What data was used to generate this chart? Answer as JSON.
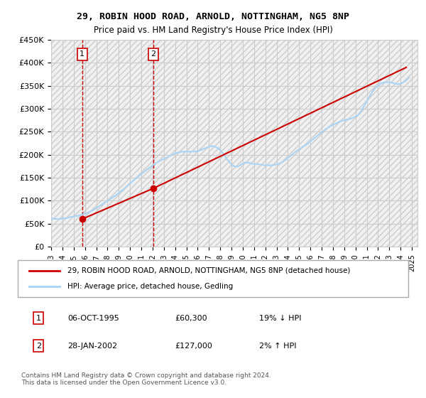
{
  "title": "29, ROBIN HOOD ROAD, ARNOLD, NOTTINGHAM, NG5 8NP",
  "subtitle": "Price paid vs. HM Land Registry's House Price Index (HPI)",
  "ylabel": "",
  "ylim": [
    0,
    450000
  ],
  "yticks": [
    0,
    50000,
    100000,
    150000,
    200000,
    250000,
    300000,
    350000,
    400000,
    450000
  ],
  "ytick_labels": [
    "£0",
    "£50K",
    "£100K",
    "£150K",
    "£200K",
    "£250K",
    "£300K",
    "£350K",
    "£400K",
    "£450K"
  ],
  "xlim_start": 1993.0,
  "xlim_end": 2025.5,
  "xticks": [
    1993,
    1994,
    1995,
    1996,
    1997,
    1998,
    1999,
    2000,
    2001,
    2002,
    2003,
    2004,
    2005,
    2006,
    2007,
    2008,
    2009,
    2010,
    2011,
    2012,
    2013,
    2014,
    2015,
    2016,
    2017,
    2018,
    2019,
    2020,
    2021,
    2022,
    2023,
    2024,
    2025
  ],
  "background_color": "#ffffff",
  "plot_bg_color": "#ffffff",
  "grid_color": "#cccccc",
  "hpi_line_color": "#aad4f5",
  "price_line_color": "#cc0000",
  "sale1_x": 1995.76,
  "sale1_y": 60300,
  "sale1_label": "1",
  "sale1_vline_color": "#cc0000",
  "sale2_x": 2002.07,
  "sale2_y": 127000,
  "sale2_label": "2",
  "sale2_vline_color": "#cc0000",
  "legend_label1": "29, ROBIN HOOD ROAD, ARNOLD, NOTTINGHAM, NG5 8NP (detached house)",
  "legend_label2": "HPI: Average price, detached house, Gedling",
  "table_row1": [
    "1",
    "06-OCT-1995",
    "£60,300",
    "19% ↓ HPI"
  ],
  "table_row2": [
    "2",
    "28-JAN-2002",
    "£127,000",
    "2% ↑ HPI"
  ],
  "footnote": "Contains HM Land Registry data © Crown copyright and database right 2024.\nThis data is licensed under the Open Government Licence v3.0.",
  "hpi_data_x": [
    1993.0,
    1993.25,
    1993.5,
    1993.75,
    1994.0,
    1994.25,
    1994.5,
    1994.75,
    1995.0,
    1995.25,
    1995.5,
    1995.75,
    1996.0,
    1996.25,
    1996.5,
    1996.75,
    1997.0,
    1997.25,
    1997.5,
    1997.75,
    1998.0,
    1998.25,
    1998.5,
    1998.75,
    1999.0,
    1999.25,
    1999.5,
    1999.75,
    2000.0,
    2000.25,
    2000.5,
    2000.75,
    2001.0,
    2001.25,
    2001.5,
    2001.75,
    2002.0,
    2002.25,
    2002.5,
    2002.75,
    2003.0,
    2003.25,
    2003.5,
    2003.75,
    2004.0,
    2004.25,
    2004.5,
    2004.75,
    2005.0,
    2005.25,
    2005.5,
    2005.75,
    2006.0,
    2006.25,
    2006.5,
    2006.75,
    2007.0,
    2007.25,
    2007.5,
    2007.75,
    2008.0,
    2008.25,
    2008.5,
    2008.75,
    2009.0,
    2009.25,
    2009.5,
    2009.75,
    2010.0,
    2010.25,
    2010.5,
    2010.75,
    2011.0,
    2011.25,
    2011.5,
    2011.75,
    2012.0,
    2012.25,
    2012.5,
    2012.75,
    2013.0,
    2013.25,
    2013.5,
    2013.75,
    2014.0,
    2014.25,
    2014.5,
    2014.75,
    2015.0,
    2015.25,
    2015.5,
    2015.75,
    2016.0,
    2016.25,
    2016.5,
    2016.75,
    2017.0,
    2017.25,
    2017.5,
    2017.75,
    2018.0,
    2018.25,
    2018.5,
    2018.75,
    2019.0,
    2019.25,
    2019.5,
    2019.75,
    2020.0,
    2020.25,
    2020.5,
    2020.75,
    2021.0,
    2021.25,
    2021.5,
    2021.75,
    2022.0,
    2022.25,
    2022.5,
    2022.75,
    2023.0,
    2023.25,
    2023.5,
    2023.75,
    2024.0,
    2024.25,
    2024.5,
    2024.75
  ],
  "hpi_data_y": [
    62000,
    61000,
    60500,
    60000,
    61000,
    62000,
    63000,
    65000,
    66000,
    67000,
    68000,
    70000,
    72000,
    74000,
    77000,
    80000,
    84000,
    88000,
    92000,
    96000,
    100000,
    104000,
    108000,
    112000,
    117000,
    122000,
    127000,
    132000,
    138000,
    143000,
    148000,
    153000,
    158000,
    163000,
    168000,
    172000,
    177000,
    181000,
    185000,
    188000,
    191000,
    194000,
    197000,
    200000,
    203000,
    205000,
    206000,
    207000,
    207000,
    207000,
    207000,
    207000,
    208000,
    210000,
    213000,
    215000,
    217000,
    219000,
    218000,
    215000,
    210000,
    203000,
    194000,
    186000,
    179000,
    175000,
    174000,
    177000,
    181000,
    183000,
    183000,
    181000,
    180000,
    180000,
    179000,
    178000,
    177000,
    177000,
    177000,
    178000,
    179000,
    181000,
    184000,
    188000,
    193000,
    198000,
    203000,
    208000,
    212000,
    216000,
    220000,
    224000,
    229000,
    234000,
    239000,
    244000,
    249000,
    254000,
    258000,
    262000,
    265000,
    268000,
    271000,
    273000,
    275000,
    277000,
    278000,
    280000,
    283000,
    287000,
    295000,
    305000,
    316000,
    327000,
    337000,
    345000,
    350000,
    355000,
    357000,
    358000,
    358000,
    357000,
    355000,
    353000,
    355000,
    358000,
    362000,
    368000
  ],
  "price_data_x": [
    1995.76,
    2002.07,
    2024.5
  ],
  "price_data_y": [
    60300,
    127000,
    390000
  ]
}
